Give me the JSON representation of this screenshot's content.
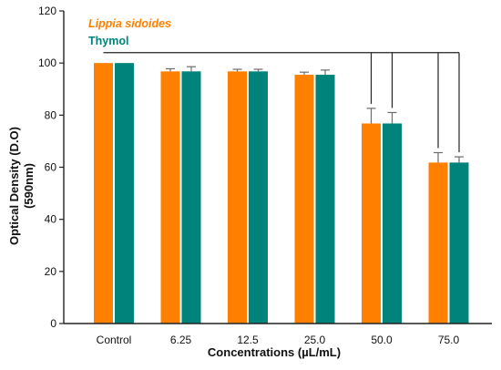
{
  "chart_data": {
    "type": "bar",
    "title": "",
    "xlabel": "Concentrations (µL/mL)",
    "ylabel_line1": "Optical Density (D.O)",
    "ylabel_line2": "(590nm)",
    "ylim": [
      0,
      120
    ],
    "yticks": [
      0,
      20,
      40,
      60,
      80,
      100,
      120
    ],
    "categories": [
      "Control",
      "6.25",
      "12.5",
      "25.0",
      "50.0",
      "75.0"
    ],
    "series": [
      {
        "name": "Lippia sidoides",
        "color": "#FF8000",
        "values": [
          100,
          96.8,
          96.8,
          95.5,
          76.8,
          61.8
        ],
        "errors": [
          0,
          1.0,
          0.8,
          1.0,
          5.8,
          3.8
        ]
      },
      {
        "name": "Thymol",
        "color": "#00837A",
        "values": [
          100,
          96.8,
          96.8,
          95.5,
          76.8,
          61.8
        ],
        "errors": [
          0,
          1.8,
          0.8,
          1.8,
          4.2,
          2.2
        ]
      }
    ],
    "legend_position": "top-left",
    "grid": false,
    "significance_bracket": {
      "level": 104,
      "from_category": "Control",
      "to_categories": [
        "50.0",
        "75.0"
      ]
    }
  }
}
